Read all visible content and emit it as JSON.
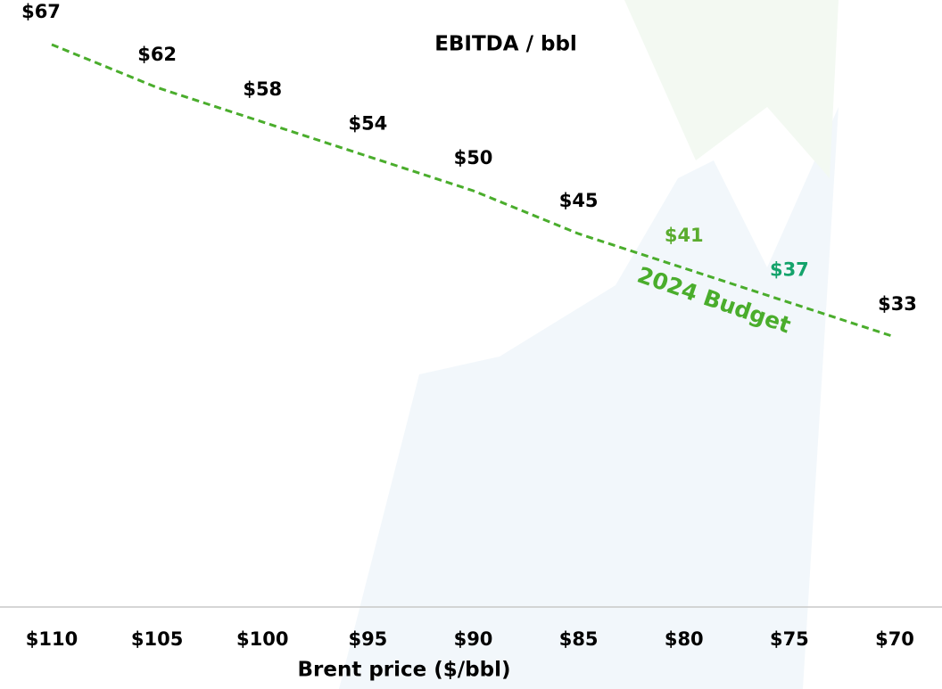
{
  "chart_data": {
    "type": "line",
    "title": "EBITDA / bbl",
    "x_label": "Brent price ($/bbl)",
    "categories": [
      "$110",
      "$105",
      "$100",
      "$95",
      "$90",
      "$85",
      "$80",
      "$75",
      "$70"
    ],
    "values": [
      67,
      62,
      58,
      54,
      50,
      45,
      41,
      37,
      33
    ],
    "value_labels": [
      "$67",
      "$62",
      "$58",
      "$54",
      "$50",
      "$45",
      "$41",
      "$37",
      "$33"
    ],
    "value_label_colors": [
      "#000000",
      "#000000",
      "#000000",
      "#000000",
      "#000000",
      "#000000",
      "#5aac2e",
      "#14a36b",
      "#000000"
    ],
    "color": "#4aad2c",
    "line_style": "dashed",
    "annotation": {
      "text": "2024 Budget",
      "color": "#4aad2c"
    }
  }
}
